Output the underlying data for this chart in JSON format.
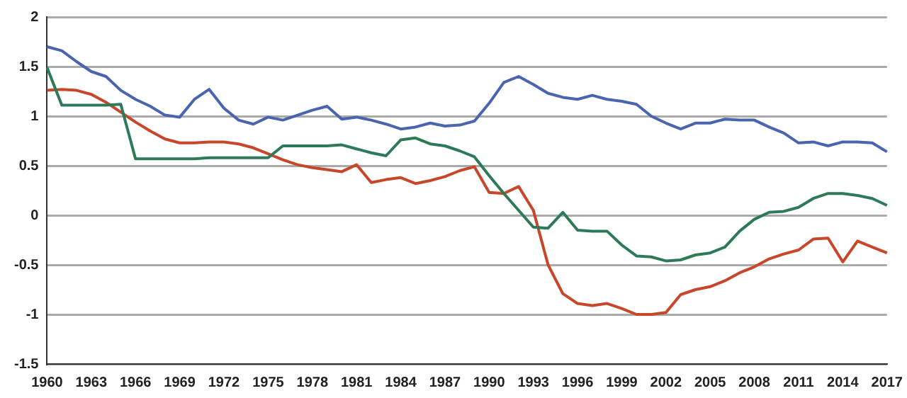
{
  "chart_data": {
    "type": "line",
    "categories": [
      "1960",
      null,
      null,
      "1963",
      null,
      null,
      "1966",
      null,
      null,
      "1969",
      null,
      null,
      "1972",
      null,
      null,
      "1975",
      null,
      null,
      "1978",
      null,
      null,
      "1981",
      null,
      null,
      "1984",
      null,
      null,
      "1987",
      null,
      null,
      "1990",
      null,
      null,
      "1993",
      null,
      null,
      "1996",
      null,
      null,
      "1999",
      null,
      null,
      "2002",
      null,
      null,
      "2005",
      null,
      null,
      "2008",
      null,
      null,
      "2011",
      null,
      null,
      "2014",
      null,
      null,
      "2017"
    ],
    "series": [
      {
        "color": "#4a64b0",
        "values": [
          1.7,
          1.66,
          1.55,
          1.45,
          1.4,
          1.26,
          1.17,
          1.1,
          1.01,
          0.99,
          1.17,
          1.27,
          1.08,
          0.96,
          0.92,
          0.99,
          0.96,
          1.01,
          1.06,
          1.1,
          0.97,
          0.99,
          0.96,
          0.92,
          0.87,
          0.89,
          0.93,
          0.9,
          0.91,
          0.95,
          1.13,
          1.34,
          1.4,
          1.32,
          1.23,
          1.19,
          1.17,
          1.21,
          1.17,
          1.15,
          1.12,
          1.0,
          0.93,
          0.87,
          0.93,
          0.93,
          0.97,
          0.96,
          0.96,
          0.89,
          0.83,
          0.73,
          0.74,
          0.7,
          0.74,
          0.74,
          0.73,
          0.64
        ]
      },
      {
        "color": "#2e7a58",
        "values": [
          1.49,
          1.11,
          1.11,
          1.11,
          1.11,
          1.12,
          0.57,
          0.57,
          0.57,
          0.57,
          0.57,
          0.58,
          0.58,
          0.58,
          0.58,
          0.58,
          0.7,
          0.7,
          0.7,
          0.7,
          0.71,
          0.67,
          0.63,
          0.6,
          0.76,
          0.78,
          0.72,
          0.7,
          0.65,
          0.59,
          0.4,
          0.22,
          0.05,
          -0.12,
          -0.13,
          0.03,
          -0.15,
          -0.16,
          -0.16,
          -0.3,
          -0.41,
          -0.42,
          -0.46,
          -0.45,
          -0.4,
          -0.38,
          -0.32,
          -0.16,
          -0.04,
          0.03,
          0.04,
          0.08,
          0.17,
          0.22,
          0.22,
          0.2,
          0.17,
          0.1
        ]
      },
      {
        "color": "#c8462a",
        "values": [
          1.26,
          1.27,
          1.26,
          1.22,
          1.14,
          1.04,
          0.94,
          0.85,
          0.77,
          0.73,
          0.73,
          0.74,
          0.74,
          0.72,
          0.68,
          0.62,
          0.56,
          0.51,
          0.48,
          0.46,
          0.44,
          0.51,
          0.33,
          0.36,
          0.38,
          0.32,
          0.35,
          0.39,
          0.45,
          0.49,
          0.23,
          0.22,
          0.29,
          0.05,
          -0.5,
          -0.79,
          -0.89,
          -0.91,
          -0.89,
          -0.94,
          -1.0,
          -1.0,
          -0.98,
          -0.8,
          -0.75,
          -0.72,
          -0.66,
          -0.58,
          -0.52,
          -0.44,
          -0.39,
          -0.35,
          -0.24,
          -0.23,
          -0.47,
          -0.26,
          -0.32,
          -0.38
        ]
      }
    ],
    "ylim": [
      -1.5,
      2
    ],
    "yticks": [
      -1.5,
      -1,
      -0.5,
      0,
      0.5,
      1,
      1.5,
      2
    ],
    "grid": "y",
    "legend": false,
    "marker": "none",
    "line_style": "solid"
  }
}
